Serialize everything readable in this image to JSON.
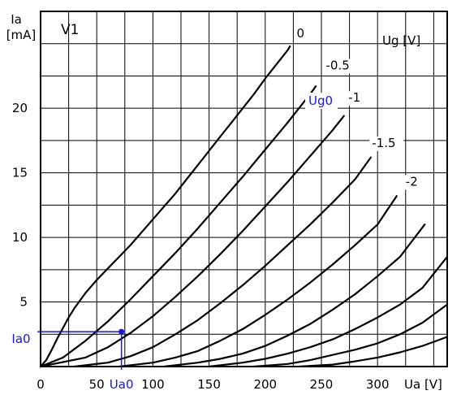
{
  "chart_data": {
    "type": "line",
    "title": "V1",
    "xlabel": "Ua [V]",
    "ylabel_line1": "Ia",
    "ylabel_line2": "[mA]",
    "legend_title": "Ug [V]",
    "xlim": [
      0,
      362
    ],
    "ylim": [
      0,
      27.5
    ],
    "grid": true,
    "x_ticks": [
      {
        "value": 0,
        "label": "0"
      },
      {
        "value": 50,
        "label": "50"
      },
      {
        "value": 100,
        "label": "100"
      },
      {
        "value": 150,
        "label": "150"
      },
      {
        "value": 200,
        "label": "200"
      },
      {
        "value": 250,
        "label": "250"
      },
      {
        "value": 300,
        "label": "300"
      }
    ],
    "y_ticks": [
      {
        "value": 5,
        "label": "5"
      },
      {
        "value": 10,
        "label": "10"
      },
      {
        "value": 15,
        "label": "15"
      },
      {
        "value": 20,
        "label": "20"
      }
    ],
    "operating_point": {
      "ua": 72,
      "ia": 2.7,
      "ua_label": "Ua0",
      "ia_label": "Ia0",
      "ug_label": "Ug0",
      "color": "#1a1acc"
    },
    "series": [
      {
        "name": "0",
        "label_x": 228,
        "label_y": 25.5,
        "x": [
          0,
          5,
          10,
          15,
          20,
          25,
          30,
          40,
          50,
          60,
          70,
          80,
          90,
          100,
          110,
          120,
          130,
          140,
          150,
          160,
          170,
          180,
          190,
          200,
          210,
          220,
          222
        ],
        "y": [
          0,
          0.5,
          1.3,
          2.2,
          3.0,
          3.8,
          4.5,
          5.7,
          6.7,
          7.6,
          8.5,
          9.4,
          10.4,
          11.4,
          12.4,
          13.4,
          14.5,
          15.6,
          16.7,
          17.8,
          18.9,
          20.0,
          21.1,
          22.3,
          23.4,
          24.5,
          24.8
        ]
      },
      {
        "name": "-0.5",
        "label_x": 254,
        "label_y": 23.0,
        "x": [
          0,
          20,
          40,
          60,
          80,
          100,
          120,
          140,
          160,
          180,
          200,
          220,
          240,
          245
        ],
        "y": [
          0,
          0.7,
          2.0,
          3.5,
          5.2,
          7.0,
          8.8,
          10.7,
          12.7,
          14.7,
          16.8,
          18.9,
          21.1,
          21.7
        ]
      },
      {
        "name": "-1",
        "label_x": 274,
        "label_y": 20.5,
        "x": [
          0,
          40,
          60,
          80,
          100,
          120,
          140,
          160,
          180,
          200,
          220,
          240,
          260,
          270
        ],
        "y": [
          0,
          0.7,
          1.5,
          2.6,
          3.9,
          5.4,
          7.0,
          8.7,
          10.5,
          12.4,
          14.3,
          16.3,
          18.3,
          19.4
        ]
      },
      {
        "name": "-1.5",
        "label_x": 295,
        "label_y": 17.0,
        "x": [
          30,
          60,
          80,
          100,
          120,
          140,
          160,
          180,
          200,
          220,
          240,
          260,
          280,
          294
        ],
        "y": [
          0,
          0.3,
          0.8,
          1.5,
          2.5,
          3.6,
          4.9,
          6.3,
          7.8,
          9.4,
          11.0,
          12.7,
          14.5,
          16.2
        ]
      },
      {
        "name": "-2",
        "label_x": 325,
        "label_y": 14.0,
        "x": [
          70,
          100,
          120,
          140,
          160,
          180,
          200,
          220,
          240,
          260,
          280,
          300,
          317
        ],
        "y": [
          0,
          0.3,
          0.7,
          1.2,
          2.0,
          2.9,
          4.0,
          5.2,
          6.5,
          7.9,
          9.4,
          11.0,
          13.2
        ]
      },
      {
        "name": "",
        "x": [
          110,
          140,
          160,
          180,
          200,
          220,
          240,
          260,
          280,
          300,
          320,
          342
        ],
        "y": [
          0,
          0.3,
          0.6,
          1.0,
          1.6,
          2.4,
          3.3,
          4.4,
          5.6,
          7.0,
          8.5,
          11.0
        ]
      },
      {
        "name": "",
        "x": [
          150,
          180,
          200,
          220,
          240,
          260,
          280,
          300,
          320,
          340,
          362
        ],
        "y": [
          0,
          0.3,
          0.6,
          1.0,
          1.5,
          2.1,
          2.9,
          3.8,
          4.8,
          6.1,
          8.5
        ]
      },
      {
        "name": "",
        "x": [
          190,
          220,
          240,
          260,
          280,
          300,
          320,
          340,
          362
        ],
        "y": [
          0,
          0.2,
          0.5,
          0.9,
          1.3,
          1.8,
          2.5,
          3.4,
          4.8
        ]
      },
      {
        "name": "",
        "x": [
          230,
          260,
          280,
          300,
          320,
          340,
          362
        ],
        "y": [
          0,
          0.15,
          0.4,
          0.7,
          1.1,
          1.6,
          2.3
        ]
      }
    ]
  }
}
